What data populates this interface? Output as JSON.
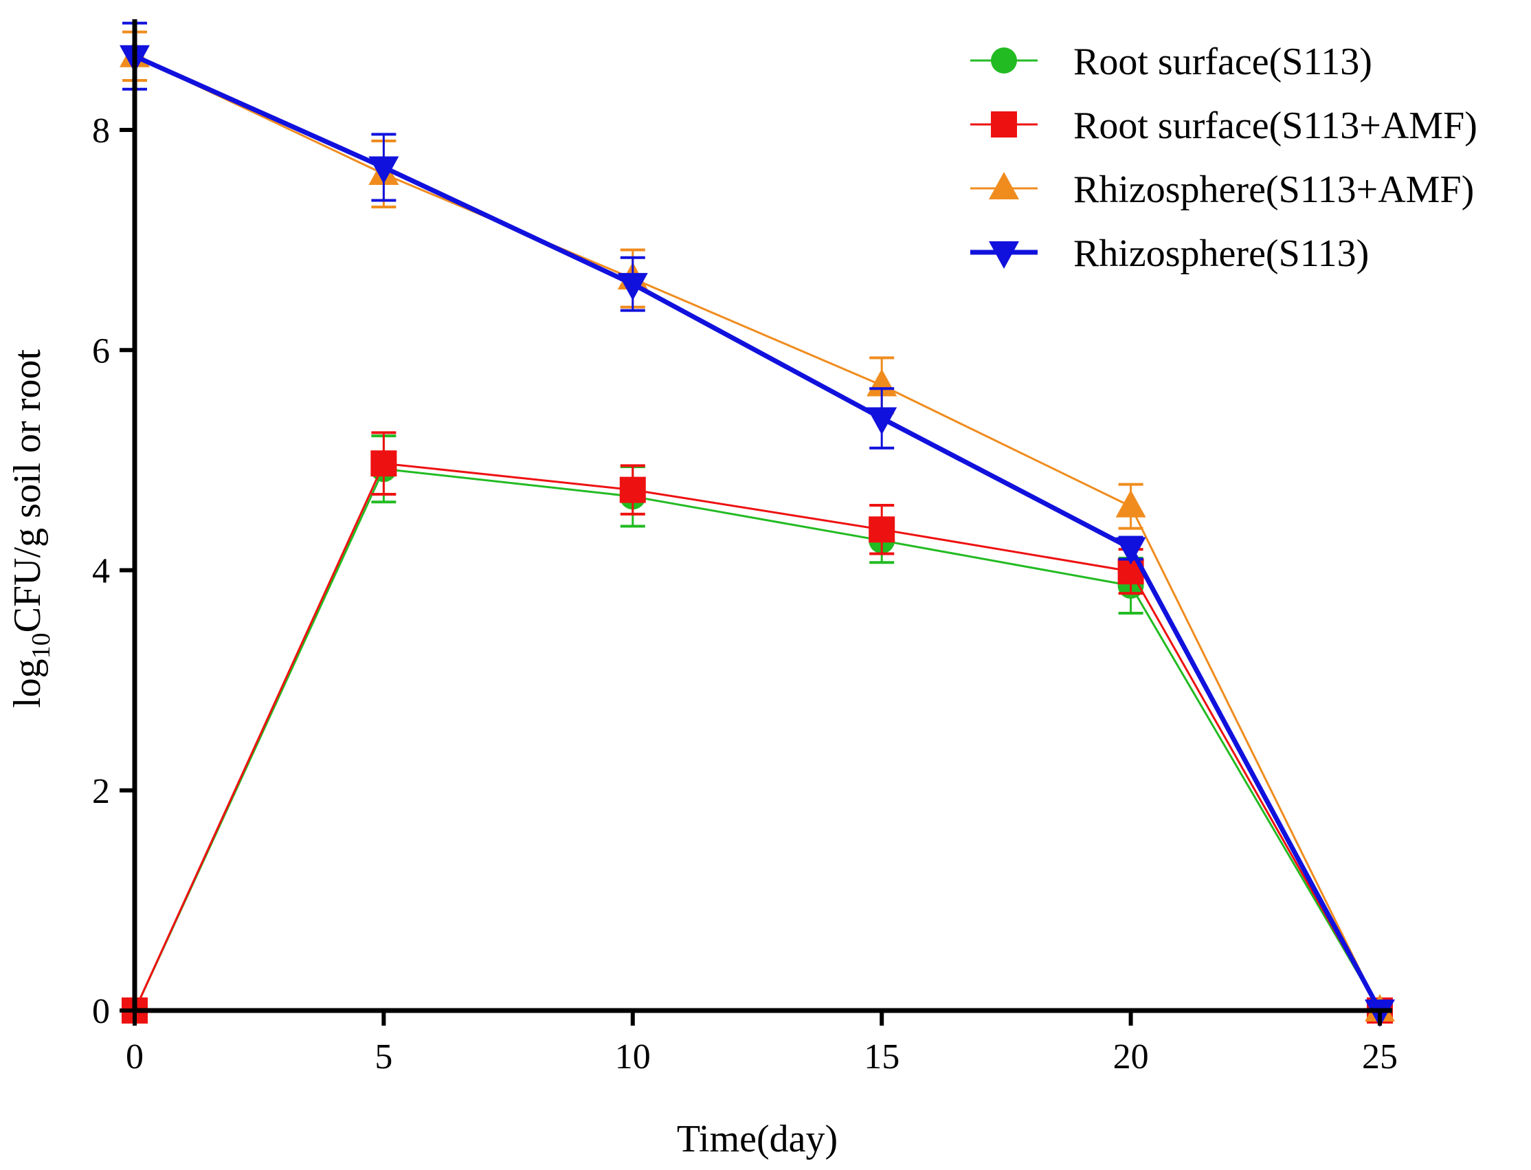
{
  "chart_data": {
    "type": "line",
    "title": "",
    "xlabel": "Time(day)",
    "ylabel": {
      "prefix": "log",
      "subscript": "10",
      "suffix": "CFU/g soil or root"
    },
    "x": [
      0,
      5,
      10,
      15,
      20,
      25
    ],
    "xlim": [
      0,
      25
    ],
    "ylim": [
      0,
      9
    ],
    "x_ticks": [
      0,
      5,
      10,
      15,
      20,
      25
    ],
    "y_ticks": [
      0,
      2,
      4,
      6,
      8
    ],
    "grid": false,
    "legend_position": "top-right",
    "series": [
      {
        "name": "Root surface(S113)",
        "color": "#22bb22",
        "marker": "circle",
        "values": [
          0,
          4.92,
          4.67,
          4.27,
          3.86,
          0
        ],
        "errors": [
          0,
          0.3,
          0.27,
          0.2,
          0.25,
          0
        ]
      },
      {
        "name": "Root surface(S113+AMF)",
        "color": "#ee1111",
        "marker": "square",
        "values": [
          0,
          4.97,
          4.73,
          4.37,
          3.99,
          0
        ],
        "errors": [
          0,
          0.28,
          0.22,
          0.22,
          0.2,
          0
        ]
      },
      {
        "name": "Rhizosphere(S113+AMF)",
        "color": "#f08c1e",
        "marker": "triangle-up",
        "values": [
          8.67,
          7.6,
          6.65,
          5.68,
          4.58,
          0
        ],
        "errors": [
          0.22,
          0.3,
          0.26,
          0.25,
          0.2,
          0
        ]
      },
      {
        "name": "Rhizosphere(S113)",
        "color": "#1111dd",
        "marker": "triangle-down",
        "values": [
          8.67,
          7.66,
          6.6,
          5.38,
          4.2,
          0
        ],
        "errors": [
          0.3,
          0.3,
          0.24,
          0.27,
          0.1,
          0
        ]
      }
    ]
  }
}
